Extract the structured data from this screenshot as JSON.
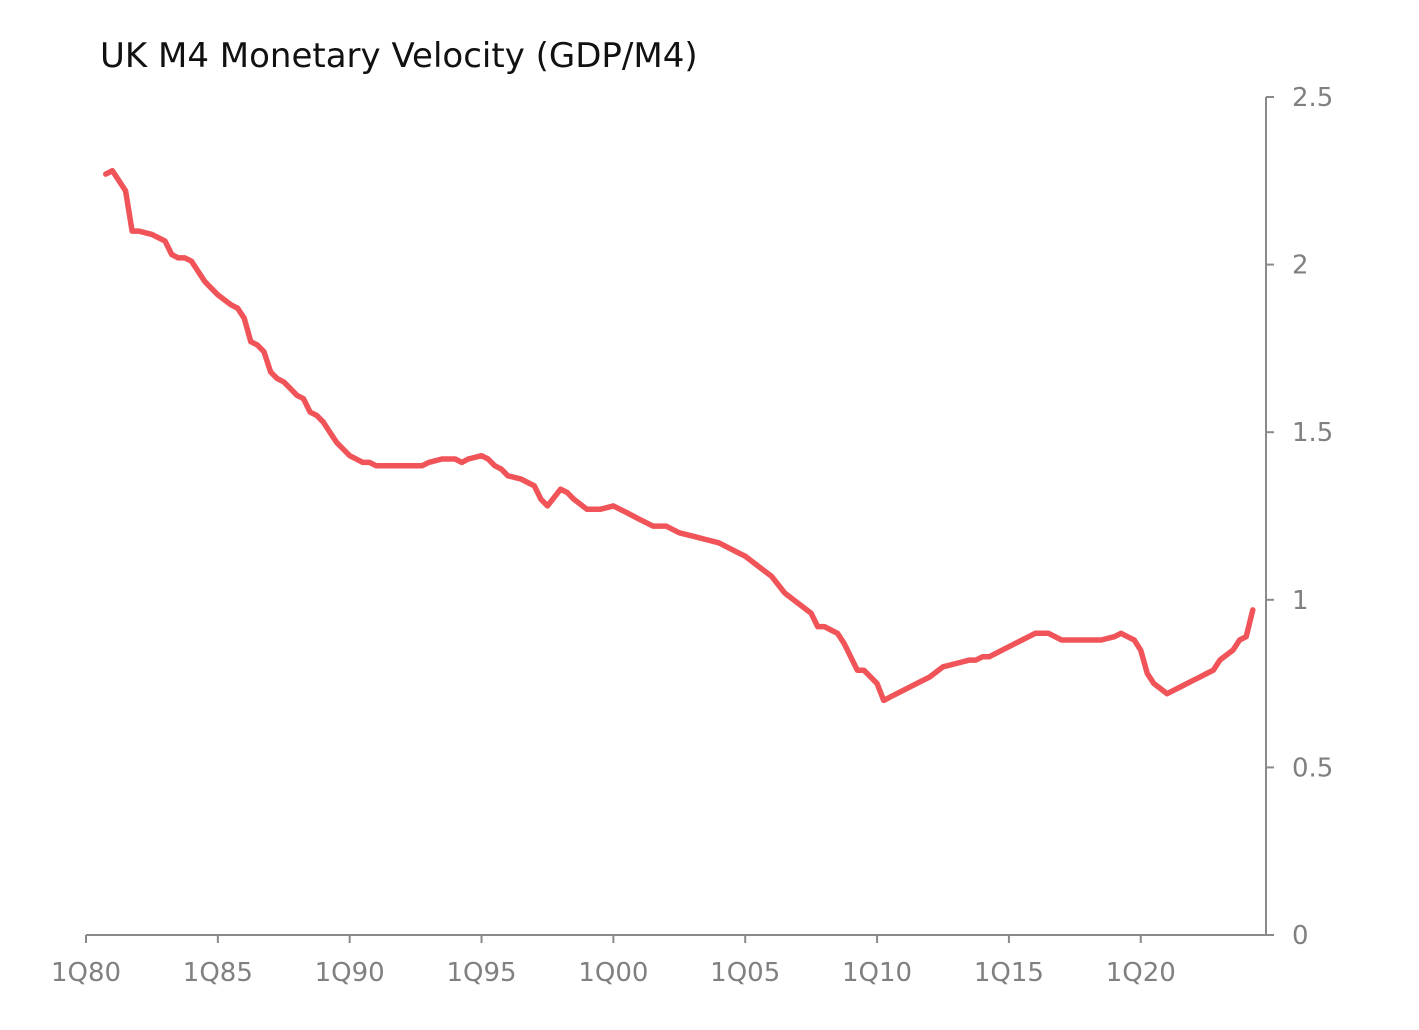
{
  "chart_data": {
    "type": "line",
    "title": "UK M4 Monetary Velocity (GDP/M4)",
    "xlabel": "",
    "ylabel": "",
    "x_tick_labels": [
      "1Q80",
      "1Q85",
      "1Q90",
      "1Q95",
      "1Q00",
      "1Q05",
      "1Q10",
      "1Q15",
      "1Q20"
    ],
    "y_ticks": [
      0,
      0.5,
      1,
      1.5,
      2,
      2.5
    ],
    "y_tick_labels": [
      "0",
      "0.5",
      "1",
      "1.5",
      "2",
      "2.5"
    ],
    "ylim": [
      0,
      2.5
    ],
    "xlim": [
      1980.0,
      2024.75
    ],
    "y_axis_position": "right",
    "grid": false,
    "legend": "none",
    "series": [
      {
        "color": "#f05458",
        "x": [
          1980.75,
          1981.0,
          1981.25,
          1981.5,
          1981.75,
          1982.0,
          1982.5,
          1983.0,
          1983.25,
          1983.5,
          1983.75,
          1984.0,
          1984.5,
          1985.0,
          1985.5,
          1985.75,
          1986.0,
          1986.25,
          1986.5,
          1986.75,
          1987.0,
          1987.25,
          1987.5,
          1987.75,
          1988.0,
          1988.25,
          1988.5,
          1988.75,
          1989.0,
          1989.25,
          1989.5,
          1989.75,
          1990.0,
          1990.5,
          1990.75,
          1991.0,
          1991.25,
          1991.5,
          1991.75,
          1992.0,
          1992.25,
          1992.5,
          1992.75,
          1993.0,
          1993.5,
          1994.0,
          1994.25,
          1994.5,
          1995.0,
          1995.25,
          1995.5,
          1995.75,
          1996.0,
          1996.5,
          1996.75,
          1997.0,
          1997.25,
          1997.5,
          1998.0,
          1998.25,
          1998.5,
          1999.0,
          1999.5,
          2000.0,
          2000.5,
          2000.75,
          2001.0,
          2001.25,
          2001.5,
          2002.0,
          2002.25,
          2002.5,
          2003.0,
          2003.5,
          2004.0,
          2004.25,
          2004.75,
          2005.0,
          2005.5,
          2006.0,
          2006.5,
          2007.0,
          2007.5,
          2007.75,
          2008.0,
          2008.25,
          2008.5,
          2008.75,
          2009.0,
          2009.25,
          2009.5,
          2010.0,
          2010.25,
          2010.5,
          2011.0,
          2011.5,
          2012.0,
          2012.5,
          2013.0,
          2013.5,
          2013.75,
          2014.0,
          2014.25,
          2014.5,
          2015.0,
          2015.5,
          2016.0,
          2016.5,
          2017.0,
          2017.5,
          2018.0,
          2018.5,
          2019.0,
          2019.25,
          2019.5,
          2019.75,
          2020.0,
          2020.25,
          2020.5,
          2021.0,
          2021.25,
          2021.5,
          2022.0,
          2022.25,
          2022.5,
          2022.75,
          2023.0,
          2023.5,
          2023.75,
          2024.0,
          2024.25
        ],
        "values": [
          2.27,
          2.28,
          2.25,
          2.22,
          2.1,
          2.1,
          2.09,
          2.07,
          2.03,
          2.02,
          2.02,
          2.01,
          1.95,
          1.91,
          1.88,
          1.87,
          1.84,
          1.77,
          1.76,
          1.74,
          1.68,
          1.66,
          1.65,
          1.63,
          1.61,
          1.6,
          1.56,
          1.55,
          1.53,
          1.5,
          1.47,
          1.45,
          1.43,
          1.41,
          1.41,
          1.4,
          1.4,
          1.4,
          1.4,
          1.4,
          1.4,
          1.4,
          1.4,
          1.41,
          1.42,
          1.42,
          1.41,
          1.42,
          1.43,
          1.42,
          1.4,
          1.39,
          1.37,
          1.36,
          1.35,
          1.34,
          1.3,
          1.28,
          1.33,
          1.32,
          1.3,
          1.27,
          1.27,
          1.28,
          1.26,
          1.25,
          1.24,
          1.23,
          1.22,
          1.22,
          1.21,
          1.2,
          1.19,
          1.18,
          1.17,
          1.16,
          1.14,
          1.13,
          1.1,
          1.07,
          1.02,
          0.99,
          0.96,
          0.92,
          0.92,
          0.91,
          0.9,
          0.87,
          0.83,
          0.79,
          0.79,
          0.75,
          0.7,
          0.71,
          0.73,
          0.75,
          0.77,
          0.8,
          0.81,
          0.82,
          0.82,
          0.83,
          0.83,
          0.84,
          0.86,
          0.88,
          0.9,
          0.9,
          0.88,
          0.88,
          0.88,
          0.88,
          0.89,
          0.9,
          0.89,
          0.88,
          0.85,
          0.78,
          0.75,
          0.72,
          0.73,
          0.74,
          0.76,
          0.77,
          0.78,
          0.79,
          0.82,
          0.85,
          0.88,
          0.89,
          0.97
        ]
      }
    ]
  }
}
